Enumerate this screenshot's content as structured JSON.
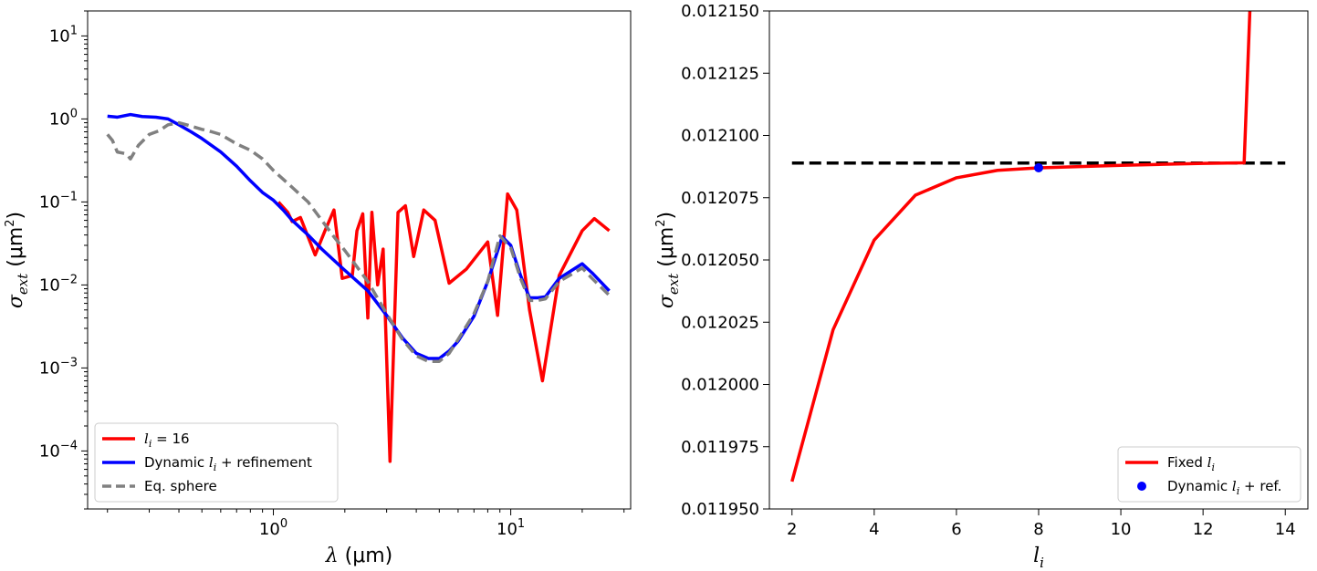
{
  "chart_data": [
    {
      "type": "line",
      "xscale": "log",
      "yscale": "log",
      "xlim": [
        0.165,
        32
      ],
      "ylim": [
        2e-05,
        20
      ],
      "xticks": [
        {
          "value": 1,
          "base": "10",
          "exp": "0"
        },
        {
          "value": 10,
          "base": "10",
          "exp": "1"
        }
      ],
      "yticks": [
        {
          "value": 0.0001,
          "base": "10",
          "exp": "−4"
        },
        {
          "value": 0.001,
          "base": "10",
          "exp": "−3"
        },
        {
          "value": 0.01,
          "base": "10",
          "exp": "−2"
        },
        {
          "value": 0.1,
          "base": "10",
          "exp": "−1"
        },
        {
          "value": 1,
          "base": "10",
          "exp": "0"
        },
        {
          "value": 10,
          "base": "10",
          "exp": "1"
        }
      ],
      "xlabel": {
        "sym": "λ",
        "unit": "(μm)"
      },
      "ylabel": {
        "sym": "σ",
        "sub": "ext",
        "unit": "(μm",
        "sup": "2",
        "close": ")"
      },
      "legend_position": "lower-left",
      "series": [
        {
          "name_main": "l",
          "name_sub": "i",
          "name_rest": " = 16",
          "color": "#ff0000",
          "style": "solid",
          "points": [
            [
              1.05,
              0.1
            ],
            [
              1.15,
              0.075
            ],
            [
              1.2,
              0.058
            ],
            [
              1.3,
              0.065
            ],
            [
              1.4,
              0.038
            ],
            [
              1.5,
              0.023
            ],
            [
              1.65,
              0.045
            ],
            [
              1.8,
              0.08
            ],
            [
              1.95,
              0.012
            ],
            [
              2.15,
              0.013
            ],
            [
              2.25,
              0.045
            ],
            [
              2.38,
              0.072
            ],
            [
              2.5,
              0.004
            ],
            [
              2.6,
              0.075
            ],
            [
              2.75,
              0.01
            ],
            [
              2.9,
              0.027
            ],
            [
              3.1,
              7.5e-05
            ],
            [
              3.35,
              0.075
            ],
            [
              3.6,
              0.09
            ],
            [
              3.9,
              0.022
            ],
            [
              4.3,
              0.08
            ],
            [
              4.8,
              0.06
            ],
            [
              5.5,
              0.0105
            ],
            [
              6.5,
              0.0155
            ],
            [
              8.0,
              0.033
            ],
            [
              8.8,
              0.0043
            ],
            [
              9.7,
              0.125
            ],
            [
              10.6,
              0.08
            ],
            [
              12.0,
              0.005
            ],
            [
              13.6,
              0.0007
            ],
            [
              16.0,
              0.013
            ],
            [
              20.0,
              0.045
            ],
            [
              22.5,
              0.063
            ],
            [
              26.0,
              0.045
            ]
          ]
        },
        {
          "name_main": "Dynamic ",
          "name_italic": "l",
          "name_sub": "i",
          "name_rest": " + refinement",
          "color": "#0000ff",
          "style": "solid",
          "points": [
            [
              0.2,
              1.08
            ],
            [
              0.22,
              1.05
            ],
            [
              0.25,
              1.13
            ],
            [
              0.28,
              1.07
            ],
            [
              0.32,
              1.05
            ],
            [
              0.36,
              1.0
            ],
            [
              0.4,
              0.85
            ],
            [
              0.45,
              0.7
            ],
            [
              0.5,
              0.58
            ],
            [
              0.6,
              0.4
            ],
            [
              0.7,
              0.27
            ],
            [
              0.8,
              0.18
            ],
            [
              0.9,
              0.13
            ],
            [
              1.0,
              0.105
            ],
            [
              1.1,
              0.08
            ],
            [
              1.2,
              0.06
            ],
            [
              1.4,
              0.04
            ],
            [
              1.6,
              0.027
            ],
            [
              2.0,
              0.015
            ],
            [
              2.5,
              0.0085
            ],
            [
              3.0,
              0.0043
            ],
            [
              3.5,
              0.0023
            ],
            [
              4.0,
              0.0015
            ],
            [
              4.5,
              0.0013
            ],
            [
              5.0,
              0.0013
            ],
            [
              5.5,
              0.0016
            ],
            [
              6.0,
              0.0021
            ],
            [
              7.0,
              0.0042
            ],
            [
              8.0,
              0.011
            ],
            [
              9.2,
              0.038
            ],
            [
              10.0,
              0.03
            ],
            [
              11.0,
              0.013
            ],
            [
              12.0,
              0.007
            ],
            [
              13.0,
              0.007
            ],
            [
              14.0,
              0.0072
            ],
            [
              16.0,
              0.012
            ],
            [
              20.0,
              0.018
            ],
            [
              22.0,
              0.014
            ],
            [
              26.0,
              0.0085
            ]
          ]
        },
        {
          "name_main": "Eq. sphere",
          "color": "#808080",
          "style": "dashed",
          "points": [
            [
              0.2,
              0.65
            ],
            [
              0.21,
              0.55
            ],
            [
              0.22,
              0.4
            ],
            [
              0.24,
              0.38
            ],
            [
              0.25,
              0.33
            ],
            [
              0.27,
              0.48
            ],
            [
              0.3,
              0.65
            ],
            [
              0.33,
              0.72
            ],
            [
              0.36,
              0.85
            ],
            [
              0.4,
              0.9
            ],
            [
              0.45,
              0.82
            ],
            [
              0.5,
              0.75
            ],
            [
              0.55,
              0.7
            ],
            [
              0.6,
              0.65
            ],
            [
              0.7,
              0.5
            ],
            [
              0.8,
              0.42
            ],
            [
              0.9,
              0.33
            ],
            [
              1.0,
              0.24
            ],
            [
              1.2,
              0.15
            ],
            [
              1.4,
              0.1
            ],
            [
              1.6,
              0.06
            ],
            [
              1.8,
              0.038
            ],
            [
              2.0,
              0.026
            ],
            [
              2.5,
              0.011
            ],
            [
              3.0,
              0.0045
            ],
            [
              3.5,
              0.0022
            ],
            [
              4.0,
              0.0014
            ],
            [
              4.5,
              0.0012
            ],
            [
              5.0,
              0.0012
            ],
            [
              5.5,
              0.0015
            ],
            [
              6.0,
              0.0022
            ],
            [
              7.0,
              0.0045
            ],
            [
              8.0,
              0.011
            ],
            [
              9.0,
              0.039
            ],
            [
              10.0,
              0.028
            ],
            [
              11.0,
              0.012
            ],
            [
              12.0,
              0.0065
            ],
            [
              13.0,
              0.0065
            ],
            [
              14.0,
              0.0068
            ],
            [
              16.0,
              0.011
            ],
            [
              20.0,
              0.016
            ],
            [
              22.0,
              0.012
            ],
            [
              26.0,
              0.0075
            ]
          ]
        }
      ]
    },
    {
      "type": "line",
      "xscale": "linear",
      "yscale": "linear",
      "xlim": [
        1.45,
        14.55
      ],
      "ylim": [
        0.01195,
        0.01215
      ],
      "xticks": [
        {
          "value": 2,
          "label": "2"
        },
        {
          "value": 4,
          "label": "4"
        },
        {
          "value": 6,
          "label": "6"
        },
        {
          "value": 8,
          "label": "8"
        },
        {
          "value": 10,
          "label": "10"
        },
        {
          "value": 12,
          "label": "12"
        },
        {
          "value": 14,
          "label": "14"
        }
      ],
      "yticks": [
        {
          "value": 0.01195,
          "label": "0.011950"
        },
        {
          "value": 0.011975,
          "label": "0.011975"
        },
        {
          "value": 0.012,
          "label": "0.012000"
        },
        {
          "value": 0.012025,
          "label": "0.012025"
        },
        {
          "value": 0.01205,
          "label": "0.012050"
        },
        {
          "value": 0.012075,
          "label": "0.012075"
        },
        {
          "value": 0.0121,
          "label": "0.012100"
        },
        {
          "value": 0.012125,
          "label": "0.012125"
        },
        {
          "value": 0.01215,
          "label": "0.012150"
        }
      ],
      "xlabel": {
        "sym": "l",
        "sub": "i"
      },
      "ylabel": {
        "sym": "σ",
        "sub": "ext",
        "unit": "(μm",
        "sup": "2",
        "close": ")"
      },
      "legend_position": "lower-right",
      "reference_line": {
        "y": 0.0120889,
        "x": [
          2,
          14
        ],
        "color": "#000000",
        "style": "dashed"
      },
      "series": [
        {
          "name_main": "Fixed ",
          "name_italic": "l",
          "name_sub": "i",
          "color": "#ff0000",
          "style": "solid",
          "marker": "none",
          "points": [
            [
              2,
              0.011961
            ],
            [
              3,
              0.012022
            ],
            [
              4,
              0.012058
            ],
            [
              5,
              0.012076
            ],
            [
              6,
              0.012083
            ],
            [
              7,
              0.012086
            ],
            [
              8,
              0.012087
            ],
            [
              9,
              0.0120875
            ],
            [
              10,
              0.012088
            ],
            [
              11,
              0.0120884
            ],
            [
              12,
              0.0120888
            ],
            [
              13,
              0.012089
            ],
            [
              13.15,
              0.012155
            ]
          ]
        },
        {
          "name_main": "Dynamic ",
          "name_italic": "l",
          "name_sub": "i",
          "name_rest": " + ref.",
          "color": "#0000ff",
          "style": "none",
          "marker": "circle",
          "points": [
            [
              8,
              0.012087
            ]
          ]
        }
      ]
    }
  ]
}
